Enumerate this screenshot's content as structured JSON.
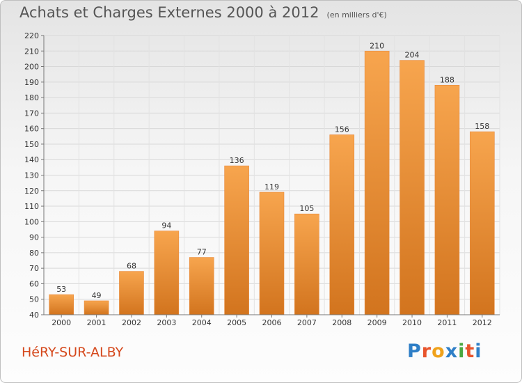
{
  "header": {
    "title": "Achats et Charges Externes 2000 à 2012",
    "subtitle": "(en milliers d'€)"
  },
  "footer": {
    "commune": "HéRY-SUR-ALBY",
    "brand_letters": [
      "P",
      "r",
      "o",
      "x",
      "i",
      "t",
      "i"
    ],
    "brand_colors": [
      "#2f7fc7",
      "#e8542c",
      "#f0a21b",
      "#2f7fc7",
      "#4aa841",
      "#e8542c",
      "#2f7fc7"
    ]
  },
  "colors": {
    "bar_top": "#f7a54e",
    "bar_bottom": "#d2741e",
    "grid": "#d8d8d8"
  },
  "chart_data": {
    "type": "bar",
    "categories": [
      "2000",
      "2001",
      "2002",
      "2003",
      "2004",
      "2005",
      "2006",
      "2007",
      "2008",
      "2009",
      "2010",
      "2011",
      "2012"
    ],
    "values": [
      53,
      49,
      68,
      94,
      77,
      136,
      119,
      105,
      156,
      210,
      204,
      188,
      158
    ],
    "ylim": [
      40,
      220
    ],
    "ytick_step": 10,
    "title": "Achats et Charges Externes 2000 à 2012",
    "xlabel": "",
    "ylabel": "",
    "grid": true,
    "data_labels": true
  }
}
